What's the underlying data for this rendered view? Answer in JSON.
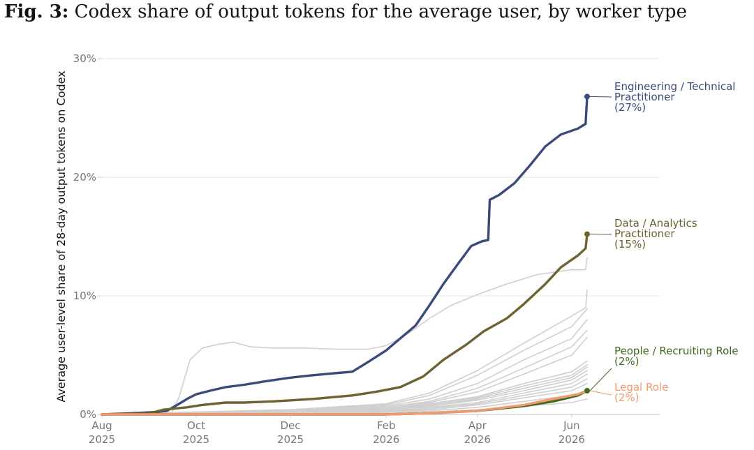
{
  "figure": {
    "number": "Fig. 3:",
    "caption": "Codex share of output tokens for the average user, by worker type"
  },
  "chart_data": {
    "type": "line",
    "title": "Codex share of output tokens for the average user, by worker type",
    "ylabel": "Average user-level share of 28-day output tokens on Codex",
    "xlabel": "",
    "x_ticks": [
      {
        "date": "2025-08-01",
        "month": "Aug",
        "year": "2025"
      },
      {
        "date": "2025-10-01",
        "month": "Oct",
        "year": "2025"
      },
      {
        "date": "2025-12-01",
        "month": "Dec",
        "year": "2025"
      },
      {
        "date": "2026-02-01",
        "month": "Feb",
        "year": "2026"
      },
      {
        "date": "2026-04-01",
        "month": "Apr",
        "year": "2026"
      },
      {
        "date": "2026-06-01",
        "month": "Jun",
        "year": "2026"
      }
    ],
    "xlim": [
      "2025-08-01",
      "2026-07-28"
    ],
    "ylim": [
      0,
      30
    ],
    "y_ticks": [
      {
        "value": 0,
        "label": "0%"
      },
      {
        "value": 10,
        "label": "10%"
      },
      {
        "value": 20,
        "label": "20%"
      },
      {
        "value": 30,
        "label": "30%"
      }
    ],
    "grid": "horizontal",
    "series": [
      {
        "label_lines": [
          "Engineering / Technical",
          "Practitioner",
          "(27%)"
        ],
        "color": "#3b4a7d",
        "highlight": true,
        "end_value": 27,
        "points": [
          [
            "2025-08-01",
            0
          ],
          [
            "2025-08-20",
            0.1
          ],
          [
            "2025-09-05",
            0.2
          ],
          [
            "2025-09-12",
            0.3
          ],
          [
            "2025-09-20",
            0.9
          ],
          [
            "2025-09-25",
            1.3
          ],
          [
            "2025-10-01",
            1.7
          ],
          [
            "2025-10-10",
            2.0
          ],
          [
            "2025-10-20",
            2.3
          ],
          [
            "2025-11-01",
            2.5
          ],
          [
            "2025-11-15",
            2.8
          ],
          [
            "2025-12-01",
            3.1
          ],
          [
            "2025-12-15",
            3.3
          ],
          [
            "2026-01-01",
            3.5
          ],
          [
            "2026-01-10",
            3.6
          ],
          [
            "2026-01-20",
            4.4
          ],
          [
            "2026-02-01",
            5.4
          ],
          [
            "2026-02-10",
            6.4
          ],
          [
            "2026-02-20",
            7.5
          ],
          [
            "2026-03-01",
            9.2
          ],
          [
            "2026-03-10",
            11.0
          ],
          [
            "2026-03-20",
            12.8
          ],
          [
            "2026-03-28",
            14.2
          ],
          [
            "2026-04-04",
            14.6
          ],
          [
            "2026-04-08",
            14.7
          ],
          [
            "2026-04-09",
            18.1
          ],
          [
            "2026-04-15",
            18.5
          ],
          [
            "2026-04-25",
            19.5
          ],
          [
            "2026-05-05",
            21.0
          ],
          [
            "2026-05-15",
            22.6
          ],
          [
            "2026-05-25",
            23.6
          ],
          [
            "2026-06-05",
            24.1
          ],
          [
            "2026-06-10",
            24.5
          ],
          [
            "2026-06-11",
            26.8
          ]
        ]
      },
      {
        "label_lines": [
          "Data / Analytics",
          "Practitioner",
          "(15%)"
        ],
        "color": "#6e6230",
        "highlight": true,
        "end_value": 15,
        "points": [
          [
            "2025-08-01",
            0
          ],
          [
            "2025-09-01",
            0.1
          ],
          [
            "2025-09-10",
            0.4
          ],
          [
            "2025-09-25",
            0.6
          ],
          [
            "2025-10-05",
            0.8
          ],
          [
            "2025-10-20",
            1.0
          ],
          [
            "2025-11-01",
            1.0
          ],
          [
            "2025-11-20",
            1.1
          ],
          [
            "2025-12-15",
            1.3
          ],
          [
            "2026-01-10",
            1.6
          ],
          [
            "2026-01-25",
            1.9
          ],
          [
            "2026-02-10",
            2.3
          ],
          [
            "2026-02-25",
            3.2
          ],
          [
            "2026-03-10",
            4.6
          ],
          [
            "2026-03-25",
            5.9
          ],
          [
            "2026-04-05",
            7.0
          ],
          [
            "2026-04-20",
            8.1
          ],
          [
            "2026-05-01",
            9.3
          ],
          [
            "2026-05-15",
            11.0
          ],
          [
            "2026-05-25",
            12.4
          ],
          [
            "2026-06-05",
            13.4
          ],
          [
            "2026-06-10",
            14.0
          ],
          [
            "2026-06-11",
            15.2
          ]
        ]
      },
      {
        "label_lines": [
          "People / Recruiting Role",
          "(2%)"
        ],
        "color": "#3f6b21",
        "highlight": true,
        "end_value": 2,
        "points": [
          [
            "2025-08-01",
            0
          ],
          [
            "2026-02-01",
            0
          ],
          [
            "2026-03-01",
            0.1
          ],
          [
            "2026-04-01",
            0.3
          ],
          [
            "2026-05-01",
            0.7
          ],
          [
            "2026-05-20",
            1.1
          ],
          [
            "2026-06-05",
            1.6
          ],
          [
            "2026-06-11",
            2.0
          ]
        ]
      },
      {
        "label_lines": [
          "Legal Role",
          "(2%)"
        ],
        "color": "#f2996e",
        "highlight": true,
        "end_value": 2,
        "points": [
          [
            "2025-08-01",
            0
          ],
          [
            "2026-02-01",
            0
          ],
          [
            "2026-03-01",
            0.1
          ],
          [
            "2026-04-01",
            0.3
          ],
          [
            "2026-05-01",
            0.8
          ],
          [
            "2026-05-20",
            1.3
          ],
          [
            "2026-06-05",
            1.7
          ],
          [
            "2026-06-11",
            2.0
          ]
        ]
      },
      {
        "color": "#cfcfcf",
        "highlight": false,
        "points": [
          [
            "2025-08-01",
            0
          ],
          [
            "2025-09-15",
            0.1
          ],
          [
            "2025-09-20",
            1.5
          ],
          [
            "2025-09-27",
            4.6
          ],
          [
            "2025-10-05",
            5.6
          ],
          [
            "2025-10-15",
            5.9
          ],
          [
            "2025-10-25",
            6.1
          ],
          [
            "2025-11-05",
            5.7
          ],
          [
            "2025-11-20",
            5.6
          ],
          [
            "2025-12-10",
            5.6
          ],
          [
            "2025-12-30",
            5.5
          ],
          [
            "2026-01-20",
            5.5
          ],
          [
            "2026-02-01",
            5.8
          ],
          [
            "2026-02-15",
            6.8
          ],
          [
            "2026-03-01",
            8.1
          ],
          [
            "2026-03-15",
            9.2
          ],
          [
            "2026-04-01",
            10.1
          ],
          [
            "2026-04-20",
            11.0
          ],
          [
            "2026-05-10",
            11.8
          ],
          [
            "2026-06-01",
            12.2
          ],
          [
            "2026-06-10",
            12.2
          ],
          [
            "2026-06-11",
            13.2
          ]
        ]
      },
      {
        "color": "#cfcfcf",
        "highlight": false,
        "points": [
          [
            "2025-08-01",
            0
          ],
          [
            "2025-10-01",
            0.2
          ],
          [
            "2025-12-01",
            0.4
          ],
          [
            "2026-02-01",
            0.9
          ],
          [
            "2026-03-01",
            1.8
          ],
          [
            "2026-04-01",
            3.7
          ],
          [
            "2026-05-01",
            6.0
          ],
          [
            "2026-06-01",
            8.3
          ],
          [
            "2026-06-10",
            9.0
          ],
          [
            "2026-06-11",
            10.5
          ]
        ]
      },
      {
        "color": "#cfcfcf",
        "highlight": false,
        "points": [
          [
            "2025-08-01",
            0
          ],
          [
            "2025-10-01",
            0.2
          ],
          [
            "2025-12-01",
            0.4
          ],
          [
            "2026-02-01",
            0.8
          ],
          [
            "2026-03-01",
            1.6
          ],
          [
            "2026-04-01",
            3.3
          ],
          [
            "2026-05-01",
            5.4
          ],
          [
            "2026-06-01",
            7.4
          ],
          [
            "2026-06-11",
            8.9
          ]
        ]
      },
      {
        "color": "#cfcfcf",
        "highlight": false,
        "points": [
          [
            "2025-08-01",
            0
          ],
          [
            "2025-10-01",
            0.2
          ],
          [
            "2025-12-01",
            0.4
          ],
          [
            "2026-02-01",
            0.7
          ],
          [
            "2026-03-01",
            1.3
          ],
          [
            "2026-04-01",
            2.6
          ],
          [
            "2026-05-01",
            4.6
          ],
          [
            "2026-06-01",
            6.4
          ],
          [
            "2026-06-11",
            8.0
          ]
        ]
      },
      {
        "color": "#cfcfcf",
        "highlight": false,
        "points": [
          [
            "2025-08-01",
            0
          ],
          [
            "2025-10-01",
            0.2
          ],
          [
            "2025-12-01",
            0.3
          ],
          [
            "2026-02-01",
            0.6
          ],
          [
            "2026-03-01",
            1.1
          ],
          [
            "2026-04-01",
            2.2
          ],
          [
            "2026-05-01",
            3.9
          ],
          [
            "2026-06-01",
            5.7
          ],
          [
            "2026-06-11",
            7.1
          ]
        ]
      },
      {
        "color": "#cfcfcf",
        "highlight": false,
        "points": [
          [
            "2025-08-01",
            0
          ],
          [
            "2025-10-01",
            0.2
          ],
          [
            "2025-12-01",
            0.3
          ],
          [
            "2026-02-01",
            0.6
          ],
          [
            "2026-03-01",
            1.0
          ],
          [
            "2026-04-01",
            1.9
          ],
          [
            "2026-05-01",
            3.4
          ],
          [
            "2026-06-01",
            5.0
          ],
          [
            "2026-06-11",
            6.5
          ]
        ]
      },
      {
        "color": "#cfcfcf",
        "highlight": false,
        "points": [
          [
            "2025-08-01",
            0
          ],
          [
            "2025-10-01",
            0.2
          ],
          [
            "2025-12-01",
            0.3
          ],
          [
            "2026-02-01",
            0.5
          ],
          [
            "2026-03-01",
            0.9
          ],
          [
            "2026-04-01",
            1.5
          ],
          [
            "2026-05-01",
            2.6
          ],
          [
            "2026-06-01",
            3.6
          ],
          [
            "2026-06-11",
            4.5
          ]
        ]
      },
      {
        "color": "#cfcfcf",
        "highlight": false,
        "points": [
          [
            "2025-08-01",
            0
          ],
          [
            "2025-10-01",
            0.2
          ],
          [
            "2025-12-01",
            0.3
          ],
          [
            "2026-02-01",
            0.5
          ],
          [
            "2026-03-01",
            0.8
          ],
          [
            "2026-04-01",
            1.4
          ],
          [
            "2026-05-01",
            2.4
          ],
          [
            "2026-06-01",
            3.3
          ],
          [
            "2026-06-11",
            4.2
          ]
        ]
      },
      {
        "color": "#cfcfcf",
        "highlight": false,
        "points": [
          [
            "2025-08-01",
            0
          ],
          [
            "2025-10-01",
            0.1
          ],
          [
            "2025-12-01",
            0.3
          ],
          [
            "2026-02-01",
            0.4
          ],
          [
            "2026-03-01",
            0.7
          ],
          [
            "2026-04-01",
            1.3
          ],
          [
            "2026-05-01",
            2.2
          ],
          [
            "2026-06-01",
            3.1
          ],
          [
            "2026-06-11",
            4.0
          ]
        ]
      },
      {
        "color": "#cfcfcf",
        "highlight": false,
        "points": [
          [
            "2025-08-01",
            0
          ],
          [
            "2025-10-01",
            0.1
          ],
          [
            "2025-12-01",
            0.2
          ],
          [
            "2026-02-01",
            0.4
          ],
          [
            "2026-03-01",
            0.7
          ],
          [
            "2026-04-01",
            1.2
          ],
          [
            "2026-05-01",
            2.0
          ],
          [
            "2026-06-01",
            2.9
          ],
          [
            "2026-06-11",
            3.7
          ]
        ]
      },
      {
        "color": "#cfcfcf",
        "highlight": false,
        "points": [
          [
            "2025-08-01",
            0
          ],
          [
            "2025-10-01",
            0.1
          ],
          [
            "2025-12-01",
            0.2
          ],
          [
            "2026-02-01",
            0.3
          ],
          [
            "2026-03-01",
            0.6
          ],
          [
            "2026-04-01",
            1.0
          ],
          [
            "2026-05-01",
            1.8
          ],
          [
            "2026-06-01",
            2.6
          ],
          [
            "2026-06-11",
            3.4
          ]
        ]
      },
      {
        "color": "#cfcfcf",
        "highlight": false,
        "points": [
          [
            "2025-08-01",
            0
          ],
          [
            "2025-10-01",
            0.1
          ],
          [
            "2025-12-01",
            0.2
          ],
          [
            "2026-02-01",
            0.3
          ],
          [
            "2026-03-01",
            0.5
          ],
          [
            "2026-04-01",
            0.9
          ],
          [
            "2026-05-01",
            1.6
          ],
          [
            "2026-06-01",
            2.3
          ],
          [
            "2026-06-11",
            3.0
          ]
        ]
      },
      {
        "color": "#cfcfcf",
        "highlight": false,
        "points": [
          [
            "2025-08-01",
            0
          ],
          [
            "2025-10-01",
            0.1
          ],
          [
            "2025-12-01",
            0.2
          ],
          [
            "2026-02-01",
            0.3
          ],
          [
            "2026-03-01",
            0.4
          ],
          [
            "2026-04-01",
            0.8
          ],
          [
            "2026-05-01",
            1.4
          ],
          [
            "2026-06-01",
            2.0
          ],
          [
            "2026-06-11",
            2.6
          ]
        ]
      },
      {
        "color": "#cfcfcf",
        "highlight": false,
        "points": [
          [
            "2025-08-01",
            0
          ],
          [
            "2025-10-01",
            0.1
          ],
          [
            "2025-12-01",
            0.1
          ],
          [
            "2026-02-01",
            0.2
          ],
          [
            "2026-03-01",
            0.3
          ],
          [
            "2026-04-01",
            0.6
          ],
          [
            "2026-05-01",
            1.1
          ],
          [
            "2026-06-01",
            1.6
          ],
          [
            "2026-06-11",
            2.0
          ]
        ]
      },
      {
        "color": "#cfcfcf",
        "highlight": false,
        "points": [
          [
            "2025-08-01",
            0
          ],
          [
            "2025-12-01",
            0.1
          ],
          [
            "2026-02-01",
            0.1
          ],
          [
            "2026-03-01",
            0.2
          ],
          [
            "2026-04-01",
            0.4
          ],
          [
            "2026-05-01",
            0.7
          ],
          [
            "2026-06-01",
            1.0
          ],
          [
            "2026-06-11",
            1.3
          ]
        ]
      }
    ]
  }
}
